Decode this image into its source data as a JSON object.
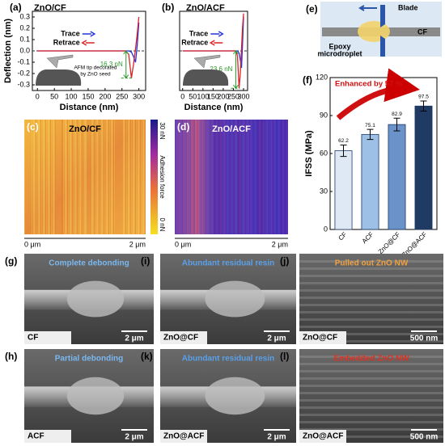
{
  "chart_data": [
    {
      "type": "line",
      "label": "(a)",
      "title": "ZnO/CF",
      "xlabel": "Distance (nm)",
      "ylabel": "Deflection (nm)",
      "x": [
        0,
        50,
        100,
        150,
        200,
        240,
        260,
        270,
        278,
        284,
        290,
        295,
        300
      ],
      "series": [
        {
          "name": "Trace",
          "color": "#2233dd",
          "values": [
            0,
            0,
            0,
            0,
            0,
            0,
            0,
            0,
            -0.01,
            -0.05,
            -0.1,
            0.05,
            0.25
          ]
        },
        {
          "name": "Retrace",
          "color": "#dd2222",
          "values": [
            0,
            0,
            0,
            0,
            0,
            0,
            0,
            -0.03,
            -0.24,
            -0.12,
            0.02,
            0.15,
            0.3
          ]
        }
      ],
      "xlim": [
        -15,
        320
      ],
      "xticks": [
        0,
        50,
        100,
        150,
        200,
        250,
        300
      ],
      "ylim": [
        -0.35,
        0.35
      ],
      "yticks": [
        -0.3,
        -0.2,
        -0.1,
        {
          "value": 0,
          "label": "0.0"
        },
        0.1,
        0.2,
        0.3
      ],
      "annotations": [
        "16.3 nN"
      ],
      "tip_note": [
        "AFM tip decorated",
        "by ZnO seed"
      ]
    },
    {
      "type": "line",
      "label": "(b)",
      "title": "ZnO/ACF",
      "xlabel": "Distance (nm)",
      "x": [
        0,
        50,
        100,
        150,
        200,
        240,
        260,
        270,
        278,
        284,
        290,
        295,
        300
      ],
      "series": [
        {
          "name": "Trace",
          "color": "#2233dd",
          "values": [
            0,
            0,
            0,
            0,
            0,
            0,
            0,
            0,
            -0.02,
            -0.08,
            -0.15,
            0.05,
            0.3
          ]
        },
        {
          "name": "Retrace",
          "color": "#dd2222",
          "values": [
            0,
            0,
            0,
            0,
            0,
            0,
            0,
            -0.04,
            -0.33,
            -0.2,
            0.02,
            0.2,
            0.33
          ]
        }
      ],
      "xlim": [
        -15,
        320
      ],
      "xticks": [
        0,
        50,
        100,
        150,
        200,
        250,
        300
      ],
      "ylim": [
        -0.35,
        0.35
      ],
      "annotations": [
        "23.6 nN"
      ]
    },
    {
      "type": "bar",
      "label": "(f)",
      "ylabel": "IFSS (MPa)",
      "categories": [
        "CF",
        "ACF",
        "ZnO@CF",
        "ZnO@ACF"
      ],
      "values": [
        62.2,
        75.1,
        82.9,
        97.5
      ],
      "errors": [
        4.5,
        4,
        5,
        4
      ],
      "colors": [
        "#dfe9f5",
        "#9dc0e6",
        "#6a93c9",
        "#1f3a63"
      ],
      "ylim": [
        0,
        120
      ],
      "yticks": [
        0,
        30,
        60,
        90,
        120
      ],
      "annotation": "Enhanced by 57 %"
    }
  ],
  "maps": [
    {
      "label": "(c)",
      "title": "ZnO/CF",
      "x_start": "0 μm",
      "x_end": "2 μm"
    },
    {
      "label": "(d)",
      "title": "ZnO/ACF",
      "x_start": "0 μm",
      "x_end": "2 μm"
    }
  ],
  "colorbar": {
    "max": "30 nN",
    "min": "0 nN",
    "label": "Adhesion force"
  },
  "schematic": {
    "label": "(e)",
    "blade": "Blade",
    "fiber": "CF",
    "droplet": [
      "Epoxy",
      "microdroplet"
    ]
  },
  "sem": [
    {
      "label": "(g)",
      "caption": "Complete debonding",
      "sample": "CF",
      "scale": "2 μm"
    },
    {
      "label": "(i)",
      "caption": "Abundant residual resin",
      "sample": "ZnO@CF",
      "scale": "2 μm"
    },
    {
      "label": "(j)",
      "caption": "Pulled out ZnO NW",
      "sample": "ZnO@CF",
      "scale": "500 nm"
    },
    {
      "label": "(h)",
      "caption": "Partial debonding",
      "sample": "ACF",
      "scale": "2 μm"
    },
    {
      "label": "(k)",
      "caption": "Abundant residual resin",
      "sample": "ZnO@ACF",
      "scale": "2 μm"
    },
    {
      "label": "(l)",
      "caption": "Embedded ZnO NW",
      "sample": "ZnO@ACF",
      "scale": "500 nm"
    }
  ]
}
